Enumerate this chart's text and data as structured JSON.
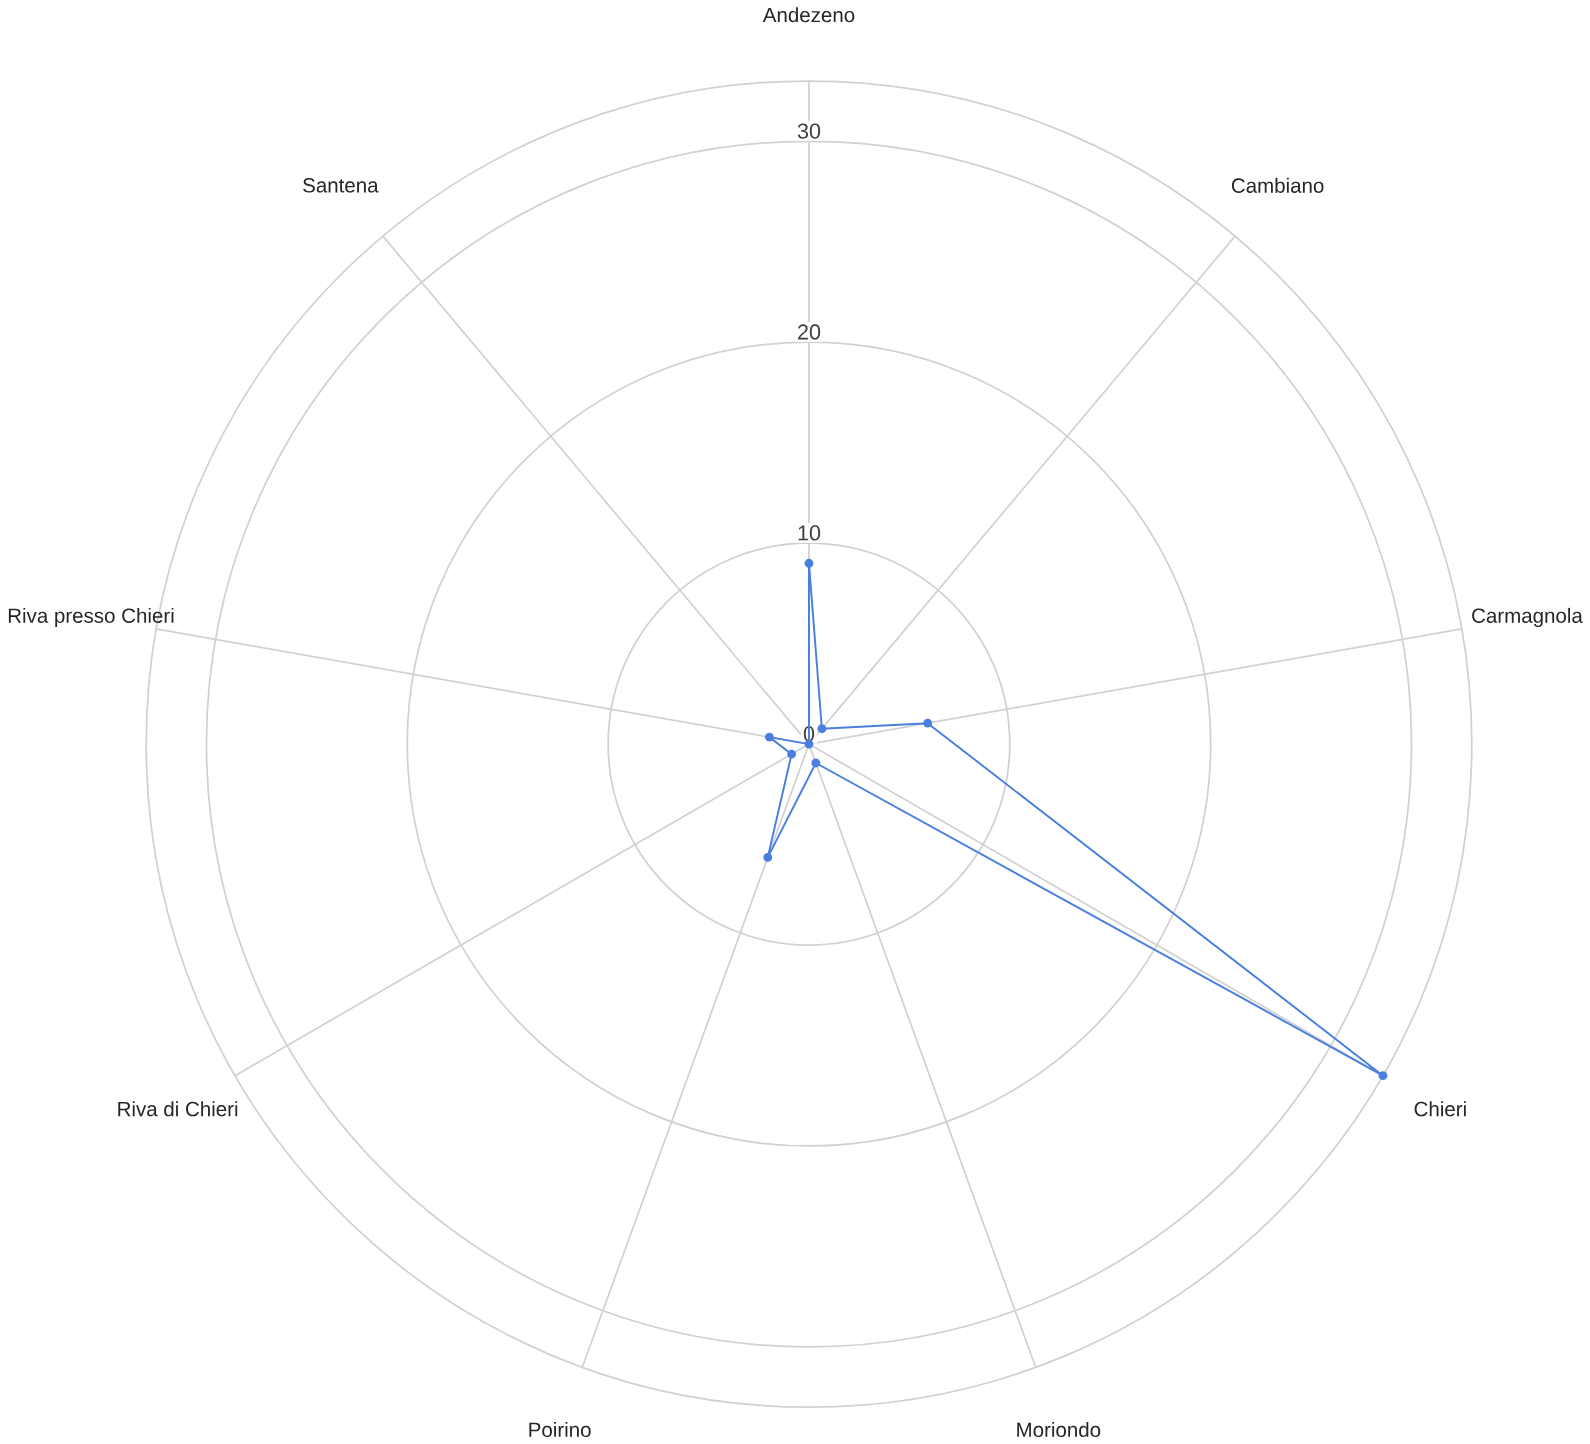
{
  "chart_data": {
    "type": "radar",
    "categories": [
      "Andezeno",
      "Cambiano",
      "Carmagnola",
      "Chieri",
      "Moriondo",
      "Poirino",
      "Riva di Chieri",
      "Riva presso Chieri",
      "Santena"
    ],
    "series": [
      {
        "color": "#4a7fe0",
        "values": [
          9,
          1,
          6,
          33,
          1,
          6,
          1,
          2,
          0
        ]
      }
    ],
    "ylim": [
      0,
      33
    ],
    "yticks": [
      0,
      10,
      20,
      30
    ],
    "grid": true,
    "marker": "circle",
    "line_style": "solid"
  }
}
